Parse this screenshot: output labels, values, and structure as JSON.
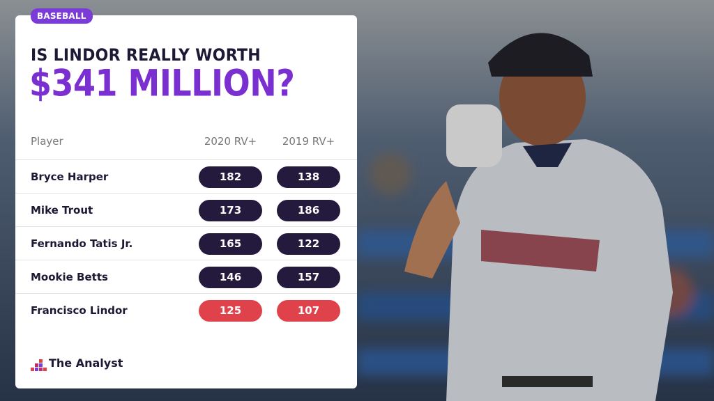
{
  "header": {
    "badge": "BASEBALL",
    "title": "IS LINDOR REALLY WORTH",
    "highlight": "$341 MILLION?"
  },
  "table": {
    "columns": [
      "Player",
      "2020 RV+",
      "2019 RV+"
    ],
    "rows": [
      {
        "player": "Bryce Harper",
        "values": [
          182,
          138
        ],
        "color": "#241a3e"
      },
      {
        "player": "Mike Trout",
        "values": [
          173,
          186
        ],
        "color": "#241a3e"
      },
      {
        "player": "Fernando Tatis Jr.",
        "values": [
          165,
          122
        ],
        "color": "#241a3e"
      },
      {
        "player": "Mookie Betts",
        "values": [
          146,
          157
        ],
        "color": "#241a3e"
      },
      {
        "player": "Francisco Lindor",
        "values": [
          125,
          107
        ],
        "color": "#e0424c"
      }
    ]
  },
  "footer": {
    "brand": "The Analyst"
  }
}
